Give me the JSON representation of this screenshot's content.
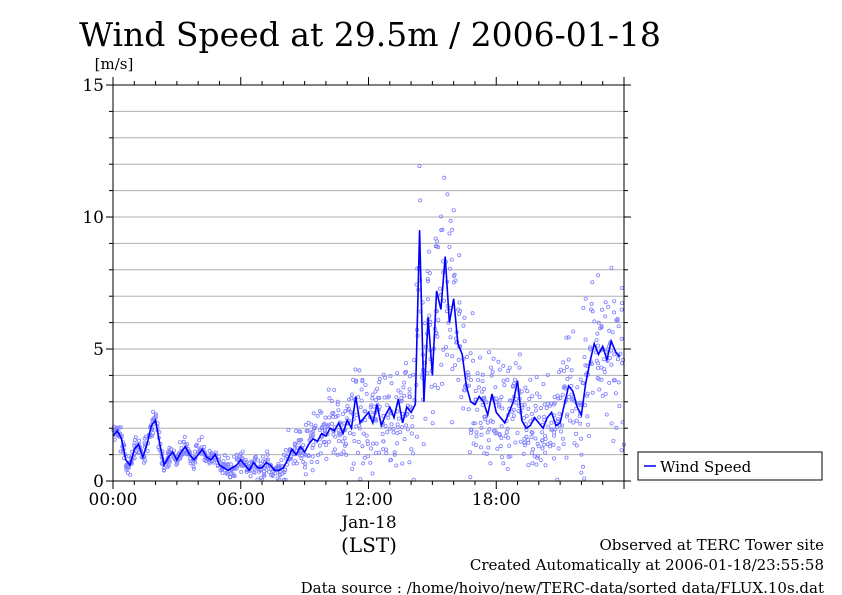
{
  "chart_data": {
    "type": "line",
    "title": "Wind Speed at 29.5m / 2006-01-18",
    "ylabel": "[m/s]",
    "xlabel": "(LST)",
    "date_label": "Jan-18",
    "x_ticks": [
      "00:00",
      "06:00",
      "12:00",
      "18:00"
    ],
    "y_ticks": [
      "0",
      "5",
      "10",
      "15"
    ],
    "ylim": [
      0,
      15
    ],
    "xlim_hours": [
      0,
      24
    ],
    "grid": true,
    "legend": "right",
    "series": [
      {
        "name": "Wind Speed",
        "color": "#0000ff",
        "x_hours": [
          0.0,
          0.2,
          0.4,
          0.6,
          0.8,
          1.0,
          1.2,
          1.4,
          1.6,
          1.8,
          2.0,
          2.2,
          2.4,
          2.6,
          2.8,
          3.0,
          3.2,
          3.4,
          3.6,
          3.8,
          4.0,
          4.2,
          4.4,
          4.6,
          4.8,
          5.0,
          5.2,
          5.4,
          5.6,
          5.8,
          6.0,
          6.2,
          6.4,
          6.6,
          6.8,
          7.0,
          7.2,
          7.4,
          7.6,
          7.8,
          8.0,
          8.2,
          8.4,
          8.6,
          8.8,
          9.0,
          9.2,
          9.4,
          9.6,
          9.8,
          10.0,
          10.2,
          10.4,
          10.6,
          10.8,
          11.0,
          11.2,
          11.4,
          11.6,
          11.8,
          12.0,
          12.2,
          12.4,
          12.6,
          12.8,
          13.0,
          13.2,
          13.4,
          13.6,
          13.8,
          14.0,
          14.2,
          14.4,
          14.6,
          14.8,
          15.0,
          15.2,
          15.4,
          15.6,
          15.8,
          16.0,
          16.2,
          16.4,
          16.6,
          16.8,
          17.0,
          17.2,
          17.4,
          17.6,
          17.8,
          18.0,
          18.2,
          18.4,
          18.6,
          18.8,
          19.0,
          19.2,
          19.4,
          19.6,
          19.8,
          20.0,
          20.2,
          20.4,
          20.6,
          20.8,
          21.0,
          21.2,
          21.4,
          21.6,
          21.8,
          22.0,
          22.2,
          22.4,
          22.6,
          22.8,
          23.0,
          23.2,
          23.4,
          23.6,
          23.8
        ],
        "values": [
          1.7,
          1.9,
          1.6,
          0.8,
          0.6,
          1.2,
          1.4,
          0.9,
          1.4,
          2.1,
          2.3,
          1.4,
          0.6,
          0.9,
          1.1,
          0.8,
          1.1,
          1.3,
          1.0,
          0.8,
          1.0,
          1.2,
          0.9,
          0.8,
          1.0,
          0.6,
          0.5,
          0.4,
          0.5,
          0.6,
          0.8,
          0.6,
          0.4,
          0.7,
          0.5,
          0.5,
          0.7,
          0.6,
          0.4,
          0.4,
          0.5,
          0.8,
          1.2,
          1.0,
          1.3,
          1.1,
          1.4,
          1.6,
          1.5,
          1.8,
          1.7,
          2.0,
          1.9,
          2.2,
          1.8,
          2.3,
          2.0,
          3.2,
          2.2,
          2.4,
          2.6,
          2.2,
          2.9,
          2.1,
          2.5,
          2.8,
          2.4,
          3.1,
          2.2,
          2.8,
          2.6,
          2.9,
          9.5,
          3.0,
          6.2,
          4.0,
          7.2,
          6.5,
          8.5,
          6.0,
          6.9,
          5.2,
          4.8,
          3.6,
          3.0,
          2.9,
          3.2,
          3.0,
          2.5,
          3.3,
          2.6,
          2.4,
          2.2,
          2.6,
          3.0,
          3.8,
          2.3,
          2.0,
          2.1,
          2.4,
          2.2,
          2.0,
          2.4,
          2.6,
          2.1,
          2.2,
          2.9,
          3.6,
          3.4,
          2.8,
          2.5,
          3.7,
          4.5,
          5.2,
          4.8,
          5.1,
          4.6,
          5.3,
          4.9,
          4.7
        ],
        "scatter_spread": [
          0.3,
          0.3,
          0.3,
          0.3,
          0.3,
          0.3,
          0.3,
          0.3,
          0.3,
          0.3,
          0.3,
          0.3,
          0.3,
          0.3,
          0.3,
          0.3,
          0.3,
          0.3,
          0.3,
          0.3,
          0.3,
          0.3,
          0.3,
          0.3,
          0.3,
          0.3,
          0.3,
          0.3,
          0.3,
          0.3,
          0.3,
          0.3,
          0.3,
          0.3,
          0.3,
          0.3,
          0.3,
          0.3,
          0.3,
          0.3,
          0.6,
          0.6,
          0.6,
          0.6,
          0.6,
          0.9,
          0.9,
          0.9,
          0.9,
          0.9,
          1.1,
          1.1,
          1.1,
          1.1,
          1.1,
          1.3,
          1.3,
          1.3,
          1.3,
          1.3,
          1.5,
          1.5,
          1.5,
          1.5,
          1.5,
          1.6,
          1.6,
          1.6,
          1.6,
          1.6,
          2.2,
          2.2,
          2.2,
          2.2,
          2.2,
          2.6,
          2.6,
          2.6,
          2.6,
          2.6,
          2.0,
          2.0,
          2.0,
          2.0,
          2.0,
          1.5,
          1.5,
          1.5,
          1.5,
          1.5,
          1.3,
          1.3,
          1.3,
          1.3,
          1.3,
          1.2,
          1.2,
          1.2,
          1.2,
          1.2,
          1.3,
          1.3,
          1.3,
          1.3,
          1.3,
          1.6,
          1.6,
          1.6,
          1.6,
          1.6,
          2.0,
          2.0,
          2.0,
          2.0,
          2.0,
          2.2,
          2.2,
          2.2,
          2.2,
          2.2
        ]
      }
    ],
    "scatter_color": "#8080ff"
  },
  "footer": {
    "site": "Observed at TERC Tower site",
    "created": "Created Automatically at 2006-01-18/23:55:58",
    "source": "Data source : /home/hoivo/new/TERC-data/sorted  data/FLUX.10s.dat"
  }
}
